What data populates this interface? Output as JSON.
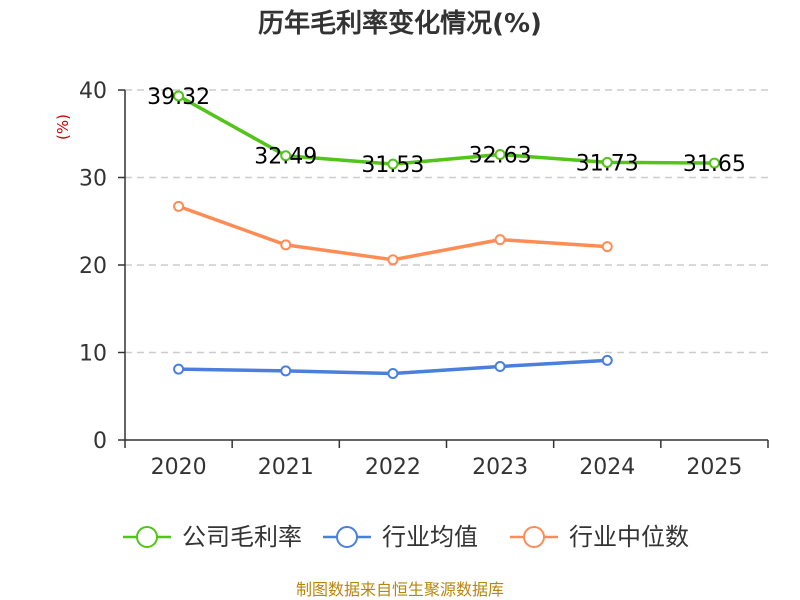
{
  "chart_data": {
    "type": "line",
    "title": "历年毛利率变化情况(%)",
    "ylabel": "(%)",
    "xlabel": "",
    "ylim": [
      0,
      40
    ],
    "yticks": [
      0,
      10,
      20,
      30,
      40
    ],
    "grid": true,
    "categories": [
      "2020",
      "2021",
      "2022",
      "2023",
      "2024",
      "2025"
    ],
    "series": [
      {
        "name": "公司毛利率",
        "color": "#52c41a",
        "values": [
          39.32,
          32.49,
          31.53,
          32.63,
          31.73,
          31.65
        ],
        "labels": [
          "39.32",
          "32.49",
          "31.53",
          "32.63",
          "31.73",
          "31.65"
        ]
      },
      {
        "name": "行业均值",
        "color": "#4a7fdb",
        "values": [
          8.1,
          7.9,
          7.6,
          8.4,
          9.1,
          null
        ]
      },
      {
        "name": "行业中位数",
        "color": "#ff8c55",
        "values": [
          26.7,
          22.3,
          20.6,
          22.9,
          22.1,
          null
        ]
      }
    ],
    "legend_position": "bottom",
    "ylabel_color": "#cc0000"
  },
  "footer": {
    "text": "制图数据来自恒生聚源数据库",
    "color": "#b8860b"
  }
}
